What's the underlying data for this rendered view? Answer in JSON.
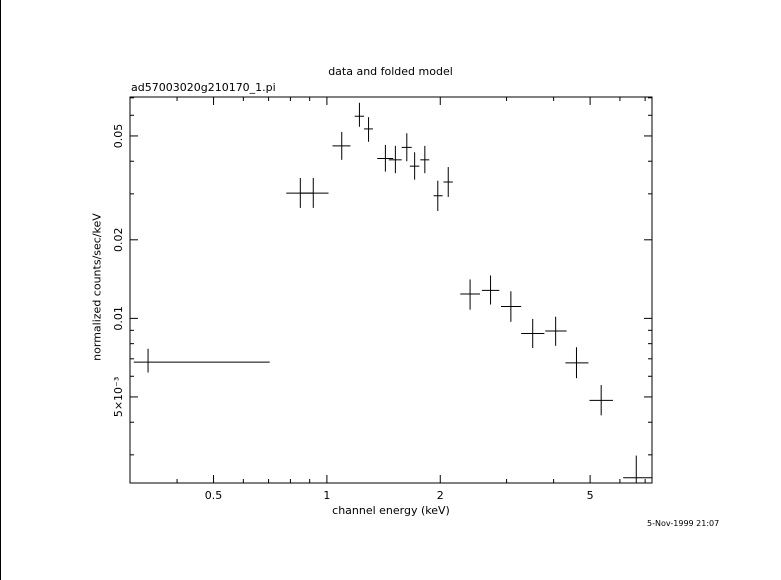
{
  "chart_data": {
    "type": "scatter",
    "title": "data and folded model",
    "subtitle": "ad57003020g210170_1.pi",
    "xlabel": "channel energy (keV)",
    "ylabel": "normalized counts/sec/keV",
    "xscale": "log",
    "yscale": "log",
    "xlim": [
      0.3,
      7.3
    ],
    "ylim": [
      0.00234,
      0.0705
    ],
    "x_ticks": [
      {
        "value": 0.5,
        "label": "0.5"
      },
      {
        "value": 1,
        "label": "1"
      },
      {
        "value": 2,
        "label": "2"
      },
      {
        "value": 5,
        "label": "5"
      }
    ],
    "y_ticks": [
      {
        "value": 0.005,
        "label": "5×10⁻³"
      },
      {
        "value": 0.01,
        "label": "0.01"
      },
      {
        "value": 0.02,
        "label": "0.02"
      },
      {
        "value": 0.05,
        "label": "0.05"
      }
    ],
    "grid": false,
    "legend": "none",
    "series": [
      {
        "points": [
          {
            "x": 0.335,
            "xlo": 0.307,
            "xhi": 0.705,
            "y": 0.0068,
            "ylo": 0.0062,
            "yhi": 0.00765
          },
          {
            "x": 0.85,
            "xlo": 0.78,
            "xhi": 0.92,
            "y": 0.0302,
            "ylo": 0.0265,
            "yhi": 0.0345
          },
          {
            "x": 0.92,
            "xlo": 0.85,
            "xhi": 1.01,
            "y": 0.0302,
            "ylo": 0.0265,
            "yhi": 0.0345
          },
          {
            "x": 1.095,
            "xlo": 1.035,
            "xhi": 1.155,
            "y": 0.0458,
            "ylo": 0.0405,
            "yhi": 0.0518
          },
          {
            "x": 1.22,
            "xlo": 1.185,
            "xhi": 1.255,
            "y": 0.0595,
            "ylo": 0.0542,
            "yhi": 0.067
          },
          {
            "x": 1.29,
            "xlo": 1.255,
            "xhi": 1.325,
            "y": 0.0532,
            "ylo": 0.0475,
            "yhi": 0.059
          },
          {
            "x": 1.43,
            "xlo": 1.36,
            "xhi": 1.5,
            "y": 0.041,
            "ylo": 0.0365,
            "yhi": 0.0462
          },
          {
            "x": 1.52,
            "xlo": 1.46,
            "xhi": 1.58,
            "y": 0.0405,
            "ylo": 0.036,
            "yhi": 0.0458
          },
          {
            "x": 1.63,
            "xlo": 1.58,
            "xhi": 1.68,
            "y": 0.0452,
            "ylo": 0.04,
            "yhi": 0.0512
          },
          {
            "x": 1.71,
            "xlo": 1.66,
            "xhi": 1.76,
            "y": 0.0383,
            "ylo": 0.034,
            "yhi": 0.0433
          },
          {
            "x": 1.82,
            "xlo": 1.77,
            "xhi": 1.87,
            "y": 0.0405,
            "ylo": 0.036,
            "yhi": 0.0458
          },
          {
            "x": 1.97,
            "xlo": 1.92,
            "xhi": 2.03,
            "y": 0.0295,
            "ylo": 0.0258,
            "yhi": 0.0337
          },
          {
            "x": 2.1,
            "xlo": 2.04,
            "xhi": 2.16,
            "y": 0.0333,
            "ylo": 0.0292,
            "yhi": 0.038
          },
          {
            "x": 2.4,
            "xlo": 2.26,
            "xhi": 2.55,
            "y": 0.0124,
            "ylo": 0.0108,
            "yhi": 0.0141
          },
          {
            "x": 2.72,
            "xlo": 2.58,
            "xhi": 2.87,
            "y": 0.0128,
            "ylo": 0.0113,
            "yhi": 0.0146
          },
          {
            "x": 3.08,
            "xlo": 2.9,
            "xhi": 3.28,
            "y": 0.0111,
            "ylo": 0.0097,
            "yhi": 0.0127
          },
          {
            "x": 3.52,
            "xlo": 3.28,
            "xhi": 3.78,
            "y": 0.00875,
            "ylo": 0.0077,
            "yhi": 0.00995
          },
          {
            "x": 4.05,
            "xlo": 3.8,
            "xhi": 4.33,
            "y": 0.00895,
            "ylo": 0.00785,
            "yhi": 0.01015
          },
          {
            "x": 4.6,
            "xlo": 4.3,
            "xhi": 4.95,
            "y": 0.00675,
            "ylo": 0.0059,
            "yhi": 0.00775
          },
          {
            "x": 5.35,
            "xlo": 4.98,
            "xhi": 5.75,
            "y": 0.00485,
            "ylo": 0.00425,
            "yhi": 0.00555
          },
          {
            "x": 6.63,
            "xlo": 6.12,
            "xhi": 7.3,
            "y": 0.00245,
            "ylo": 0.00234,
            "yhi": 0.00298
          }
        ]
      }
    ]
  },
  "footer": {
    "timestamp": "5-Nov-1999 21:07"
  }
}
